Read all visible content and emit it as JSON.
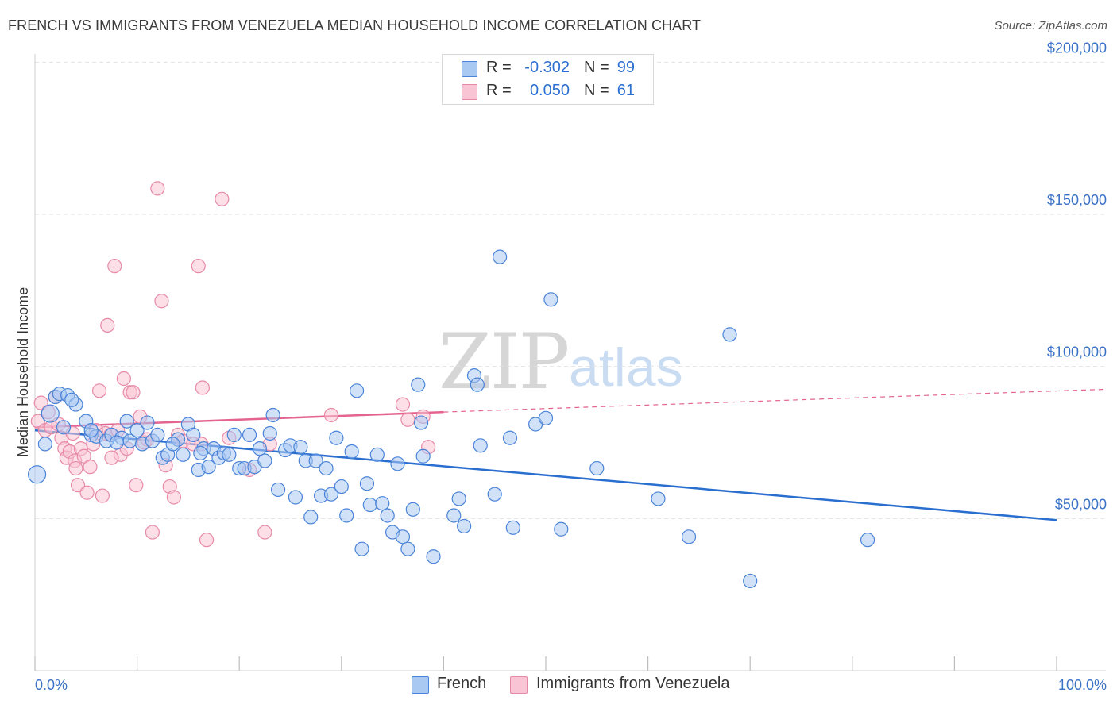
{
  "header": {
    "title": "FRENCH VS IMMIGRANTS FROM VENEZUELA MEDIAN HOUSEHOLD INCOME CORRELATION CHART",
    "source": "Source: ZipAtlas.com"
  },
  "watermark": {
    "zip": "ZIP",
    "atlas": "atlas"
  },
  "stats_legend": [
    {
      "r_label": "R =",
      "r_value": "-0.302",
      "n_label": "N =",
      "n_value": "99",
      "color": "#a9c8f2"
    },
    {
      "r_label": "R =",
      "r_value": "0.050",
      "n_label": "N =",
      "n_value": "61",
      "color": "#f9c4d4"
    }
  ],
  "bottom_legend": [
    {
      "label": "French",
      "color": "#a9c8f2"
    },
    {
      "label": "Immigrants from Venezuela",
      "color": "#f9c4d4"
    }
  ],
  "colors": {
    "french_fill": "#a9c8f2",
    "french_stroke": "#4a84d8",
    "french_line": "#2a6fd0",
    "ven_fill": "#f9c4d4",
    "ven_stroke": "#e78aa8",
    "ven_line": "#e4648f",
    "grid": "#e2e2e2",
    "axis_text": "#3a72c6"
  },
  "chart_data": {
    "type": "scatter",
    "title": "FRENCH VS IMMIGRANTS FROM VENEZUELA MEDIAN HOUSEHOLD INCOME CORRELATION CHART",
    "xlabel": "",
    "ylabel": "Median Household Income",
    "xlim": [
      0,
      100
    ],
    "ylim": [
      0,
      210000
    ],
    "x_tick_labels": [
      "0.0%",
      "100.0%"
    ],
    "y_ticks": [
      50000,
      100000,
      150000,
      200000
    ],
    "y_tick_labels": [
      "$50,000",
      "$100,000",
      "$150,000",
      "$200,000"
    ],
    "grid": "horizontal dashed",
    "legend_position": "bottom",
    "series": [
      {
        "name": "French",
        "trend": {
          "x0": 0,
          "y0": 79000,
          "x1": 100,
          "y1": 49500,
          "dashed_to": null
        },
        "points": [
          [
            0.2,
            64500
          ],
          [
            1.0,
            74500
          ],
          [
            1.5,
            84500
          ],
          [
            2.0,
            90000
          ],
          [
            2.4,
            91000
          ],
          [
            2.8,
            80000
          ],
          [
            3.2,
            90500
          ],
          [
            4.0,
            87500
          ],
          [
            3.6,
            89000
          ],
          [
            5.0,
            82000
          ],
          [
            5.5,
            77500
          ],
          [
            6.0,
            77000
          ],
          [
            7.0,
            75500
          ],
          [
            7.5,
            77500
          ],
          [
            8.5,
            76500
          ],
          [
            9.0,
            82000
          ],
          [
            9.3,
            75500
          ],
          [
            10.0,
            79000
          ],
          [
            10.5,
            74500
          ],
          [
            11.0,
            81500
          ],
          [
            11.5,
            75500
          ],
          [
            12.0,
            77500
          ],
          [
            12.5,
            70000
          ],
          [
            13.0,
            71000
          ],
          [
            14.0,
            76000
          ],
          [
            14.5,
            71000
          ],
          [
            15.0,
            81000
          ],
          [
            15.5,
            77500
          ],
          [
            16.0,
            66000
          ],
          [
            16.5,
            73000
          ],
          [
            17.0,
            67000
          ],
          [
            17.5,
            73000
          ],
          [
            18.0,
            70000
          ],
          [
            18.5,
            71500
          ],
          [
            19.0,
            71000
          ],
          [
            19.5,
            77500
          ],
          [
            20.0,
            66500
          ],
          [
            20.5,
            66500
          ],
          [
            21.0,
            77500
          ],
          [
            21.5,
            67000
          ],
          [
            22.0,
            73000
          ],
          [
            22.5,
            69000
          ],
          [
            23.0,
            78000
          ],
          [
            23.3,
            84000
          ],
          [
            23.8,
            59500
          ],
          [
            24.5,
            72500
          ],
          [
            25.0,
            74000
          ],
          [
            25.5,
            57000
          ],
          [
            26.0,
            73500
          ],
          [
            26.5,
            69000
          ],
          [
            27.0,
            50500
          ],
          [
            27.5,
            69000
          ],
          [
            28.0,
            57500
          ],
          [
            28.5,
            66500
          ],
          [
            29.0,
            58000
          ],
          [
            29.5,
            76500
          ],
          [
            30.0,
            60500
          ],
          [
            30.5,
            51000
          ],
          [
            31.0,
            72000
          ],
          [
            31.5,
            92000
          ],
          [
            32.0,
            40000
          ],
          [
            32.5,
            61500
          ],
          [
            32.8,
            54500
          ],
          [
            33.5,
            71000
          ],
          [
            34.0,
            55000
          ],
          [
            34.5,
            51000
          ],
          [
            35.0,
            45500
          ],
          [
            35.5,
            68000
          ],
          [
            36.0,
            44000
          ],
          [
            36.5,
            40000
          ],
          [
            37.0,
            53000
          ],
          [
            37.5,
            94000
          ],
          [
            37.8,
            81500
          ],
          [
            38.0,
            70500
          ],
          [
            39.0,
            37500
          ],
          [
            41.0,
            51000
          ],
          [
            41.5,
            56500
          ],
          [
            42.0,
            47500
          ],
          [
            43.0,
            97000
          ],
          [
            43.3,
            94000
          ],
          [
            43.6,
            74000
          ],
          [
            45.0,
            58000
          ],
          [
            45.5,
            136000
          ],
          [
            46.5,
            76500
          ],
          [
            46.8,
            47000
          ],
          [
            49.0,
            81000
          ],
          [
            50.0,
            83000
          ],
          [
            50.5,
            122000
          ],
          [
            51.5,
            46500
          ],
          [
            55.0,
            66500
          ],
          [
            61.0,
            56500
          ],
          [
            64.0,
            44000
          ],
          [
            68.0,
            110500
          ],
          [
            70.0,
            29500
          ],
          [
            81.5,
            43000
          ],
          [
            5.5,
            79000
          ],
          [
            8.0,
            75000
          ],
          [
            13.5,
            74500
          ],
          [
            16.2,
            71500
          ]
        ]
      },
      {
        "name": "Immigrants from Venezuela",
        "trend": {
          "x0": 0,
          "y0": 80000,
          "x1": 40,
          "y1": 85000,
          "dashed_to": {
            "x": 100,
            "y": 92500
          }
        },
        "points": [
          [
            0.3,
            82000
          ],
          [
            0.6,
            88000
          ],
          [
            1.0,
            79000
          ],
          [
            1.3,
            85000
          ],
          [
            1.6,
            80000
          ],
          [
            2.0,
            90000
          ],
          [
            2.3,
            81000
          ],
          [
            2.6,
            76500
          ],
          [
            2.9,
            73000
          ],
          [
            3.1,
            70000
          ],
          [
            3.4,
            72000
          ],
          [
            3.7,
            78000
          ],
          [
            3.9,
            69000
          ],
          [
            4.2,
            61000
          ],
          [
            4.5,
            73000
          ],
          [
            4.8,
            70500
          ],
          [
            5.1,
            58500
          ],
          [
            5.4,
            67000
          ],
          [
            5.7,
            74500
          ],
          [
            6.0,
            79000
          ],
          [
            6.3,
            92000
          ],
          [
            6.6,
            57500
          ],
          [
            6.9,
            78000
          ],
          [
            7.1,
            113500
          ],
          [
            7.4,
            77500
          ],
          [
            7.8,
            133000
          ],
          [
            8.1,
            79000
          ],
          [
            8.4,
            71000
          ],
          [
            8.7,
            96000
          ],
          [
            9.0,
            73000
          ],
          [
            9.3,
            91500
          ],
          [
            9.6,
            91500
          ],
          [
            9.9,
            61000
          ],
          [
            10.3,
            83500
          ],
          [
            10.7,
            75000
          ],
          [
            11.0,
            76000
          ],
          [
            11.5,
            45500
          ],
          [
            12.0,
            158500
          ],
          [
            12.4,
            121500
          ],
          [
            12.8,
            67500
          ],
          [
            13.2,
            60500
          ],
          [
            13.6,
            57000
          ],
          [
            14.0,
            77500
          ],
          [
            14.5,
            75500
          ],
          [
            15.5,
            74500
          ],
          [
            16.0,
            133000
          ],
          [
            16.4,
            93000
          ],
          [
            16.8,
            43000
          ],
          [
            16.3,
            74500
          ],
          [
            18.3,
            155000
          ],
          [
            19.0,
            76500
          ],
          [
            21.0,
            66000
          ],
          [
            22.5,
            45500
          ],
          [
            29.0,
            84000
          ],
          [
            36.0,
            87500
          ],
          [
            36.5,
            82500
          ],
          [
            38.0,
            83500
          ],
          [
            38.5,
            73500
          ],
          [
            23.0,
            74500
          ],
          [
            7.5,
            70000
          ],
          [
            4.0,
            66500
          ]
        ]
      }
    ]
  }
}
